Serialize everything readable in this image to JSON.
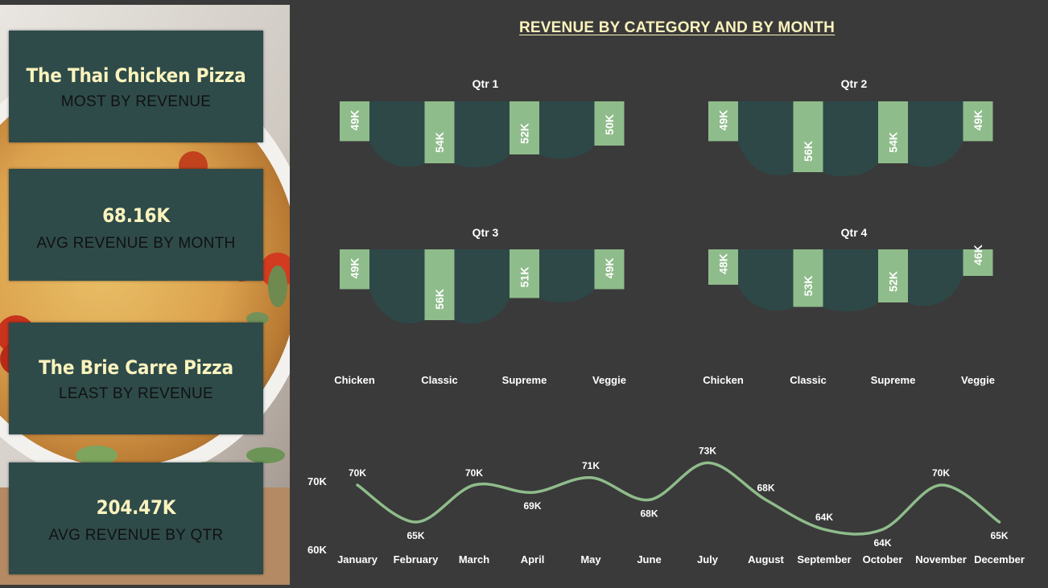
{
  "kpis": {
    "most_value": "The Thai Chicken Pizza",
    "most_label": "MOST BY REVENUE",
    "avg_month_value": "68.16K",
    "avg_month_label": "AVG REVENUE BY MONTH",
    "least_value": "The Brie Carre Pizza",
    "least_label": "LEAST BY REVENUE",
    "avg_qtr_value": "204.47K",
    "avg_qtr_label": "AVG REVENUE BY QTR"
  },
  "title": "REVENUE BY CATEGORY AND BY MONTH",
  "colors": {
    "bar": "#8fbc8b",
    "panel": "#2e4848",
    "background": "#3a3a3a",
    "kpi_card": "#2e4b4a",
    "title": "#fbf3bd",
    "line": "#8fbc8b"
  },
  "chart_data": [
    {
      "type": "bar",
      "title": "Qtr 1",
      "categories": [
        "Chicken",
        "Classic",
        "Supreme",
        "Veggie"
      ],
      "values": [
        49,
        54,
        52,
        50
      ],
      "labels": [
        "49K",
        "54K",
        "52K",
        "50K"
      ]
    },
    {
      "type": "bar",
      "title": "Qtr 2",
      "categories": [
        "Chicken",
        "Classic",
        "Supreme",
        "Veggie"
      ],
      "values": [
        49,
        56,
        54,
        49
      ],
      "labels": [
        "49K",
        "56K",
        "54K",
        "49K"
      ]
    },
    {
      "type": "bar",
      "title": "Qtr 3",
      "categories": [
        "Chicken",
        "Classic",
        "Supreme",
        "Veggie"
      ],
      "values": [
        49,
        56,
        51,
        49
      ],
      "labels": [
        "49K",
        "56K",
        "51K",
        "49K"
      ]
    },
    {
      "type": "bar",
      "title": "Qtr 4",
      "categories": [
        "Chicken",
        "Classic",
        "Supreme",
        "Veggie"
      ],
      "values": [
        48,
        53,
        52,
        46
      ],
      "labels": [
        "48K",
        "53K",
        "52K",
        "46K"
      ]
    },
    {
      "type": "line",
      "categories": [
        "January",
        "February",
        "March",
        "April",
        "May",
        "June",
        "July",
        "August",
        "September",
        "October",
        "November",
        "December"
      ],
      "values": [
        70,
        65,
        70,
        69,
        71,
        68,
        73,
        68,
        64,
        64,
        70,
        65
      ],
      "labels": [
        "70K",
        "65K",
        "70K",
        "69K",
        "71K",
        "68K",
        "73K",
        "68K",
        "64K",
        "64K",
        "70K",
        "65K"
      ],
      "label_pos": [
        "above",
        "below",
        "above",
        "below",
        "above",
        "below",
        "above",
        "above",
        "above",
        "below",
        "above",
        "below"
      ],
      "yticks": [
        "70K",
        "60K"
      ],
      "ylim": [
        60,
        70
      ]
    }
  ]
}
